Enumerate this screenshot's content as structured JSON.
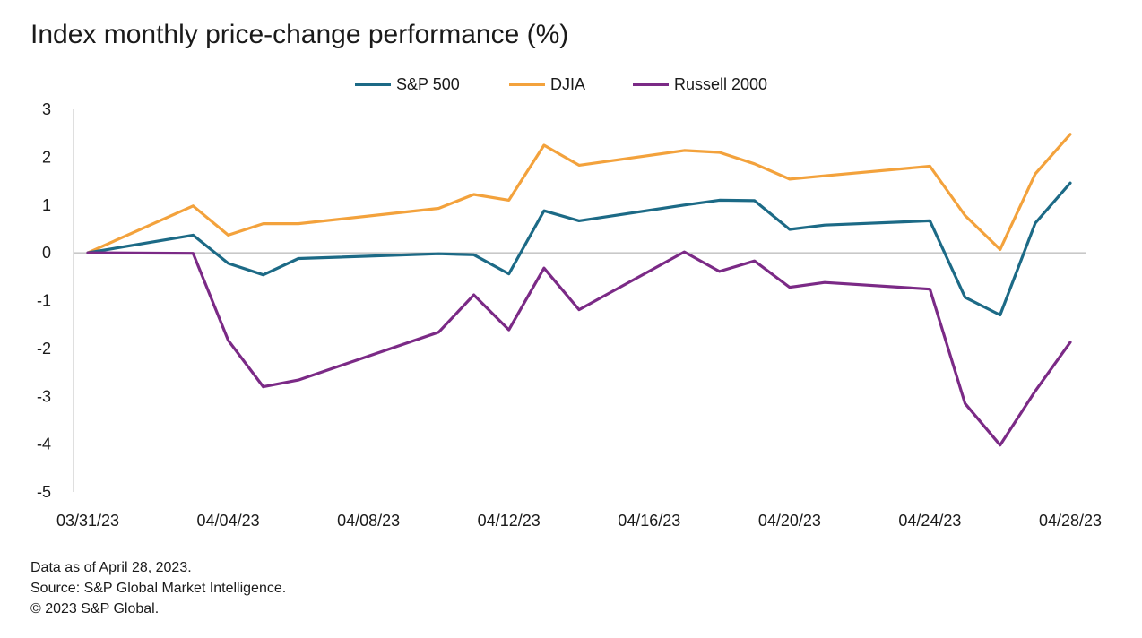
{
  "chart_data": {
    "type": "line",
    "title": "Index monthly price-change performance (%)",
    "xlabel": "",
    "ylabel": "",
    "x": [
      "03/31/23",
      "04/03/23",
      "04/04/23",
      "04/05/23",
      "04/06/23",
      "04/10/23",
      "04/11/23",
      "04/12/23",
      "04/13/23",
      "04/14/23",
      "04/17/23",
      "04/18/23",
      "04/19/23",
      "04/20/23",
      "04/21/23",
      "04/24/23",
      "04/25/23",
      "04/26/23",
      "04/27/23",
      "04/28/23"
    ],
    "x_tick_labels": [
      "03/31/23",
      "04/04/23",
      "04/08/23",
      "04/12/23",
      "04/16/23",
      "04/20/23",
      "04/24/23",
      "04/28/23"
    ],
    "x_tick_dates": [
      "03/31/23",
      "04/04/23",
      "04/08/23",
      "04/12/23",
      "04/16/23",
      "04/20/23",
      "04/24/23",
      "04/28/23"
    ],
    "ylim": [
      -5,
      3
    ],
    "y_ticks": [
      3,
      2,
      1,
      0,
      -1,
      -2,
      -3,
      -4,
      -5
    ],
    "grid": false,
    "legend_position": "top-center",
    "series": [
      {
        "name": "S&P 500",
        "color": "#1c6a86",
        "values": [
          0.0,
          0.37,
          -0.22,
          -0.46,
          -0.12,
          -0.02,
          -0.04,
          -0.44,
          0.88,
          0.67,
          1.0,
          1.1,
          1.09,
          0.49,
          0.58,
          0.67,
          -0.93,
          -1.3,
          0.62,
          1.46
        ]
      },
      {
        "name": "DJIA",
        "color": "#f3a23c",
        "values": [
          0.0,
          0.98,
          0.37,
          0.61,
          0.61,
          0.93,
          1.22,
          1.1,
          2.25,
          1.83,
          2.14,
          2.1,
          1.86,
          1.54,
          1.61,
          1.81,
          0.78,
          0.07,
          1.65,
          2.48
        ]
      },
      {
        "name": "Russell 2000",
        "color": "#7b2a86",
        "values": [
          0.0,
          -0.01,
          -1.83,
          -2.8,
          -2.66,
          -1.66,
          -0.88,
          -1.61,
          -0.32,
          -1.19,
          0.02,
          -0.39,
          -0.17,
          -0.72,
          -0.62,
          -0.76,
          -3.15,
          -4.02,
          -2.89,
          -1.87
        ]
      }
    ]
  },
  "footnotes": [
    "Data as of April 28, 2023.",
    "Source: S&P Global Market Intelligence.",
    "© 2023 S&P Global."
  ]
}
